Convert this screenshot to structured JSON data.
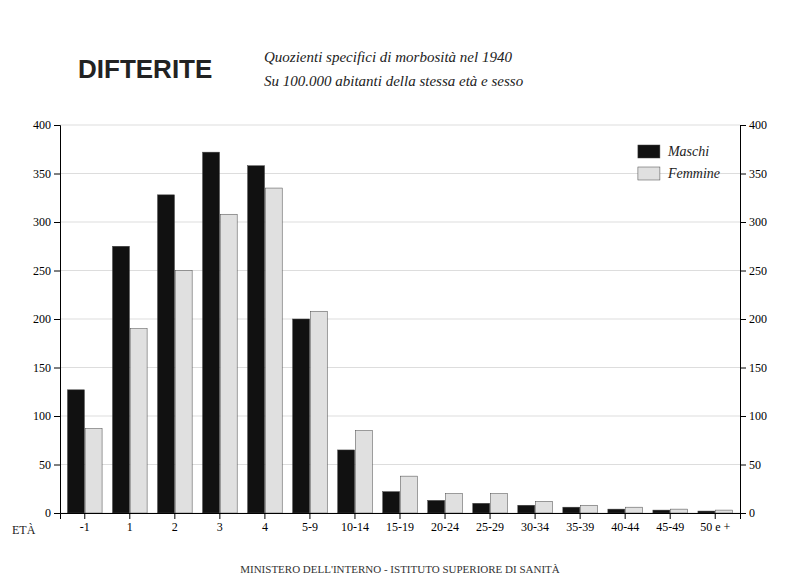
{
  "chart_data": {
    "type": "bar",
    "title": "DIFTERITE",
    "subtitle": [
      "Quozienti specifici di morbosità nel 1940",
      "Su 100.000 abitanti della stessa età e sesso"
    ],
    "xlabel": "ETÀ",
    "annotations": [
      "MINISTERO DELL'INTERNO - ISTITUTO SUPERIORE DI SANITÀ"
    ],
    "categories": [
      "-1",
      "1",
      "2",
      "3",
      "4",
      "5-9",
      "10-14",
      "15-19",
      "20-24",
      "25-29",
      "30-34",
      "35-39",
      "40-44",
      "45-49",
      "50 e +"
    ],
    "series": [
      {
        "name": "Maschi",
        "color": "#111111",
        "values": [
          127,
          275,
          328,
          372,
          358,
          200,
          65,
          22,
          13,
          10,
          8,
          6,
          4,
          3,
          2
        ]
      },
      {
        "name": "Femmine",
        "color": "#e0e0e0",
        "values": [
          87,
          190,
          250,
          308,
          335,
          208,
          85,
          38,
          20,
          20,
          12,
          8,
          6,
          4,
          3
        ]
      }
    ],
    "ylim": [
      0,
      400
    ],
    "yticks": [
      0,
      50,
      100,
      150,
      200,
      250,
      300,
      350,
      400
    ],
    "y2lim": [
      0,
      400
    ],
    "y2ticks": [
      0,
      50,
      100,
      150,
      200,
      250,
      300,
      350,
      400
    ],
    "grid": true,
    "legend": "upper right"
  }
}
